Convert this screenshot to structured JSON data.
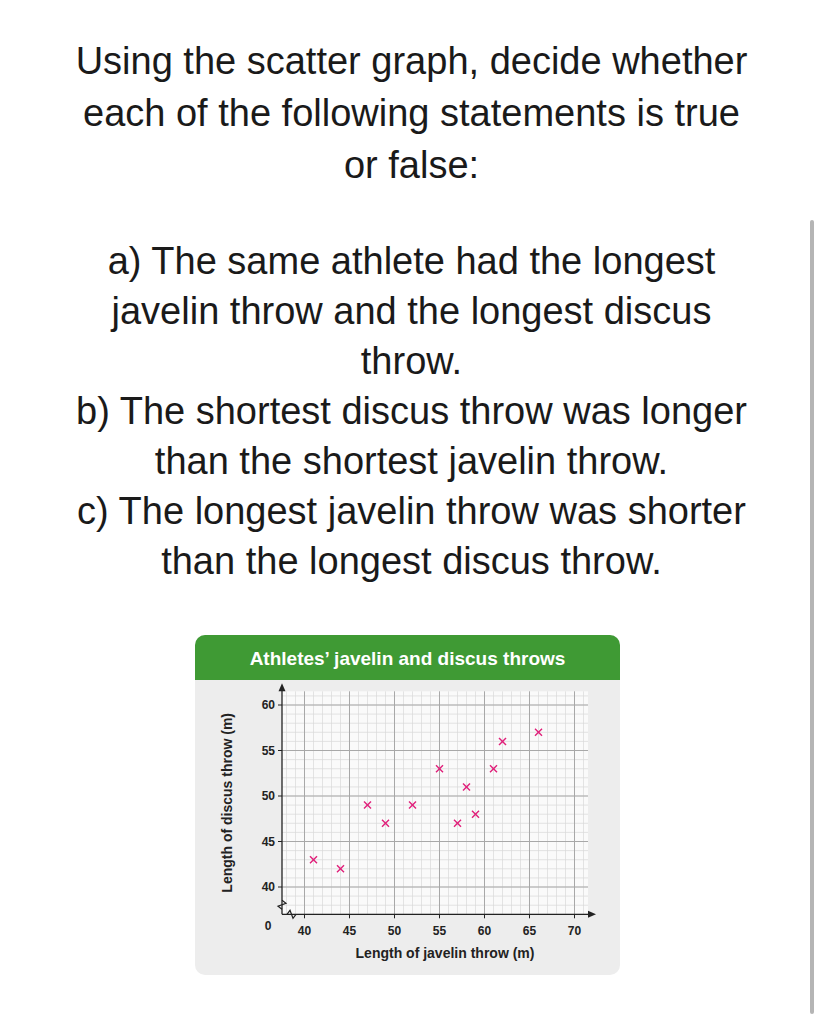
{
  "question": {
    "prompt_lines": [
      "Using the scatter graph, decide whether",
      "each of the following statements is true",
      "or false:"
    ],
    "statements": [
      [
        "a) The same athlete had the longest",
        "javelin throw and the longest discus",
        "throw."
      ],
      [
        "b) The shortest discus throw was longer",
        "than the shortest javelin throw."
      ],
      [
        "c) The longest javelin throw was shorter",
        "than the longest discus throw."
      ]
    ]
  },
  "chart_data": {
    "type": "scatter",
    "title": "Athletes’ javelin and discus throws",
    "x_label": "Length of javelin throw (m)",
    "y_label": "Length of discus throw (m)",
    "origin_label": "0",
    "x": [
      41,
      44,
      47,
      49,
      52,
      55,
      57,
      58,
      59,
      61,
      62,
      66
    ],
    "values": [
      43,
      42,
      49,
      47,
      49,
      53,
      47,
      51,
      48,
      53,
      56,
      57
    ],
    "color": "#e0207a",
    "marker": "x",
    "xlim": [
      37.5,
      71.5
    ],
    "ylim": [
      37,
      61.5
    ],
    "xticks": [
      40,
      45,
      50,
      55,
      60,
      65,
      70
    ],
    "yticks": [
      40,
      45,
      50,
      55,
      60
    ],
    "grid": true
  }
}
